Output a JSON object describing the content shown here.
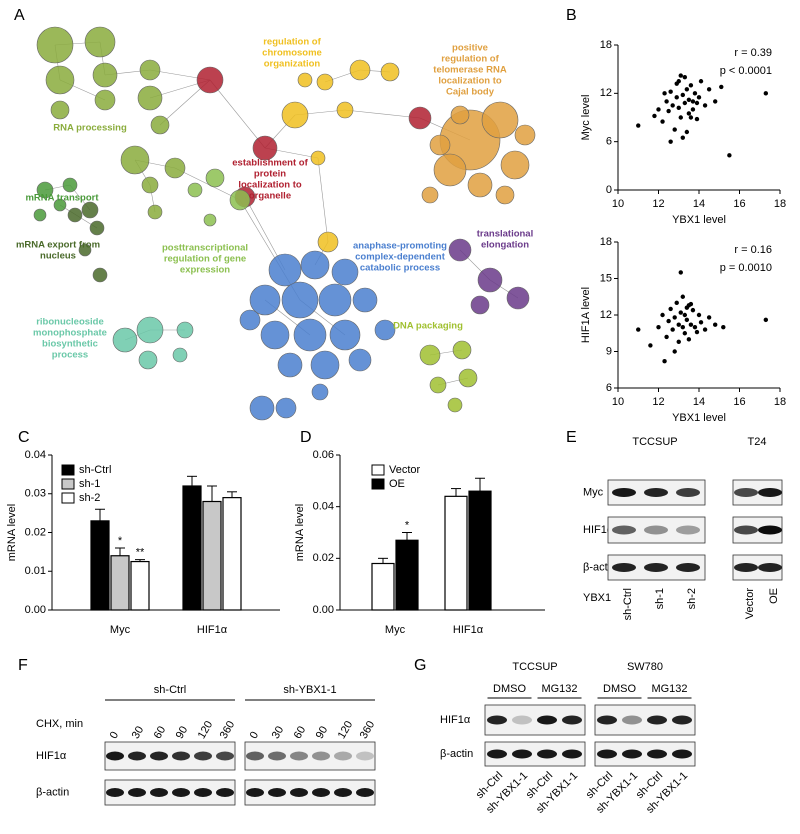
{
  "panel_labels": [
    "A",
    "B",
    "C",
    "D",
    "E",
    "F",
    "G"
  ],
  "network": {
    "clusters": [
      {
        "lines": [
          "RNA processing"
        ],
        "color": "#8aac3c"
      },
      {
        "lines": [
          "regulation of",
          "chromosome",
          "organization"
        ],
        "color": "#f0c020"
      },
      {
        "lines": [
          "positive",
          "regulation of",
          "telomerase RNA",
          "localization to",
          "Cajal body"
        ],
        "color": "#e0a040"
      },
      {
        "lines": [
          "establishment of",
          "protein",
          "localization to",
          "organelle"
        ],
        "color": "#b02030"
      },
      {
        "lines": [
          "mRNA transport"
        ],
        "color": "#4a9a3a"
      },
      {
        "lines": [
          "mRNA export from",
          "nucleus"
        ],
        "color": "#4a6a2a"
      },
      {
        "lines": [
          "posttranscriptional",
          "regulation of gene",
          "expression"
        ],
        "color": "#8cc050"
      },
      {
        "lines": [
          "anaphase-promoting",
          "complex-dependent",
          "catabolic process"
        ],
        "color": "#4a7fcf"
      },
      {
        "lines": [
          "translational",
          "elongation"
        ],
        "color": "#6a3a8a"
      },
      {
        "lines": [
          "ribonucleoside",
          "monophosphate",
          "biosynthetic",
          "process"
        ],
        "color": "#6ac8a8"
      },
      {
        "lines": [
          "DNA packaging"
        ],
        "color": "#a0c030"
      }
    ]
  },
  "chart_data": [
    {
      "type": "scatter",
      "ylabel": "Myc level",
      "xlabel": "YBX1 level",
      "color": "#000000",
      "annotations": [
        "r = 0.39",
        "p < 0.0001"
      ],
      "xlim": [
        10,
        18
      ],
      "xticks": [
        10,
        12,
        14,
        16,
        18
      ],
      "ylim": [
        0,
        18
      ],
      "yticks": [
        0,
        6,
        12,
        18
      ],
      "x": [
        11.0,
        11.8,
        12.0,
        12.2,
        12.4,
        12.5,
        12.6,
        12.7,
        12.8,
        12.9,
        13.0,
        13.0,
        13.1,
        13.2,
        13.2,
        13.3,
        13.3,
        13.4,
        13.5,
        13.5,
        13.6,
        13.7,
        13.8,
        13.9,
        14.0,
        14.1,
        14.3,
        14.5,
        14.8,
        15.1,
        15.5,
        17.3,
        12.6,
        12.9,
        13.1,
        13.4,
        13.6,
        13.9,
        12.3,
        13.7
      ],
      "values": [
        8.0,
        9.2,
        10.0,
        8.5,
        11.0,
        9.8,
        12.2,
        10.5,
        7.5,
        11.5,
        10.2,
        13.5,
        9.0,
        11.8,
        6.5,
        10.8,
        14.0,
        12.5,
        9.5,
        11.2,
        13.0,
        10.0,
        12.0,
        8.8,
        11.5,
        13.5,
        10.5,
        12.5,
        11.0,
        12.8,
        4.3,
        12.0,
        6.0,
        13.2,
        14.2,
        7.2,
        9.0,
        10.8,
        12.0,
        11.0
      ]
    },
    {
      "type": "scatter",
      "ylabel": "HIF1A level",
      "xlabel": "YBX1 level",
      "color": "#000000",
      "annotations": [
        "r = 0.16",
        "p = 0.0010"
      ],
      "xlim": [
        10,
        18
      ],
      "xticks": [
        10,
        12,
        14,
        16,
        18
      ],
      "ylim": [
        6,
        18
      ],
      "yticks": [
        6,
        9,
        12,
        15,
        18
      ],
      "x": [
        11.0,
        11.6,
        12.0,
        12.2,
        12.4,
        12.5,
        12.6,
        12.7,
        12.8,
        12.9,
        13.0,
        13.0,
        13.1,
        13.2,
        13.2,
        13.3,
        13.3,
        13.4,
        13.5,
        13.5,
        13.6,
        13.7,
        13.8,
        13.9,
        14.0,
        14.1,
        14.3,
        14.5,
        14.8,
        15.2,
        17.3,
        12.3,
        13.1,
        13.6,
        12.8,
        13.4
      ],
      "values": [
        10.8,
        9.5,
        11.0,
        12.0,
        10.2,
        11.5,
        12.5,
        10.8,
        11.8,
        13.0,
        11.2,
        9.8,
        12.2,
        11.0,
        13.5,
        10.5,
        12.0,
        11.6,
        12.8,
        10.0,
        11.2,
        12.4,
        11.0,
        10.6,
        12.0,
        11.4,
        10.8,
        11.8,
        11.2,
        11.0,
        11.6,
        8.2,
        15.5,
        12.9,
        9.0,
        12.6
      ]
    },
    {
      "type": "bar",
      "ylabel": "mRNA level",
      "categories": [
        "Myc",
        "HIF1α"
      ],
      "ylim": [
        0,
        0.04
      ],
      "yticks": [
        {
          "value": 0,
          "label": "0.00"
        },
        {
          "value": 0.01,
          "label": "0.01"
        },
        {
          "value": 0.02,
          "label": "0.02"
        },
        {
          "value": 0.03,
          "label": "0.03"
        },
        {
          "value": 0.04,
          "label": "0.04"
        }
      ],
      "series": [
        {
          "name": "sh-Ctrl",
          "color": "#000000",
          "values": [
            0.023,
            0.032
          ],
          "errors": [
            0.003,
            0.0025
          ]
        },
        {
          "name": "sh-1",
          "color": "#c8c8c8",
          "values": [
            0.014,
            0.028
          ],
          "errors": [
            0.002,
            0.004
          ]
        },
        {
          "name": "sh-2",
          "color": "#ffffff",
          "values": [
            0.0125,
            0.029
          ],
          "errors": [
            0.0005,
            0.0015
          ]
        }
      ],
      "annotations": [
        {
          "text": "*",
          "series": 1,
          "category": 0
        },
        {
          "text": "**",
          "series": 2,
          "category": 0
        }
      ]
    },
    {
      "type": "bar",
      "ylabel": "mRNA level",
      "categories": [
        "Myc",
        "HIF1α"
      ],
      "ylim": [
        0,
        0.06
      ],
      "yticks": [
        {
          "value": 0,
          "label": "0.00"
        },
        {
          "value": 0.02,
          "label": "0.02"
        },
        {
          "value": 0.04,
          "label": "0.04"
        },
        {
          "value": 0.06,
          "label": "0.06"
        }
      ],
      "series": [
        {
          "name": "Vector",
          "color": "#ffffff",
          "values": [
            0.018,
            0.044
          ],
          "errors": [
            0.002,
            0.003
          ]
        },
        {
          "name": "OE",
          "color": "#000000",
          "values": [
            0.027,
            0.046
          ],
          "errors": [
            0.003,
            0.005
          ]
        }
      ],
      "annotations": [
        {
          "text": "*",
          "series": 1,
          "category": 0
        }
      ]
    }
  ],
  "blots": {
    "E": {
      "groups": [
        "TCCSUP",
        "T24"
      ],
      "rows": [
        "Myc",
        "HIF1α",
        "β-actin"
      ],
      "lanes_label": "YBX1",
      "lanes": [
        [
          "sh-Ctrl",
          "sh-1",
          "sh-2"
        ],
        [
          "Vector",
          "OE"
        ]
      ]
    },
    "F": {
      "groups": [
        "sh-Ctrl",
        "sh-YBX1-1"
      ],
      "treatment": "CHX, min",
      "times": [
        0,
        30,
        60,
        90,
        120,
        360
      ],
      "rows": [
        "HIF1α",
        "β-actin"
      ]
    },
    "G": {
      "groups": [
        "TCCSUP",
        "SW780"
      ],
      "treatments": [
        "DMSO",
        "MG132"
      ],
      "rows": [
        "HIF1α",
        "β-actin"
      ],
      "lanes": [
        "sh-Ctrl",
        "sh-YBX1-1",
        "sh-Ctrl",
        "sh-YBX1-1"
      ]
    }
  }
}
